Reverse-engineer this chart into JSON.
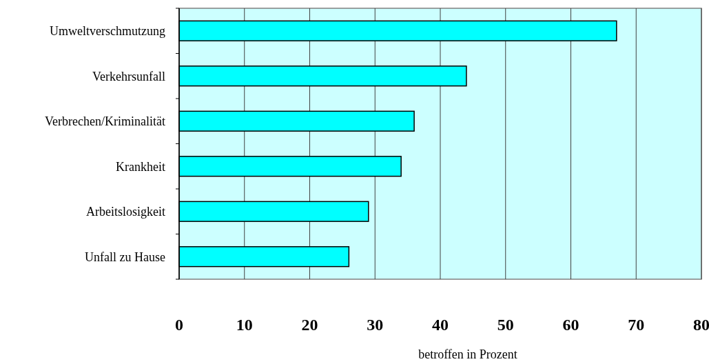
{
  "chart_data": {
    "type": "bar",
    "orientation": "horizontal",
    "xlabel": "betroffen in Prozent",
    "categories": [
      "Umweltverschmutzung",
      "Verkehrsunfall",
      "Verbrechen/Kriminalität",
      "Krankheit",
      "Arbeitslosigkeit",
      "Unfall zu Hause"
    ],
    "values": [
      67,
      44,
      36,
      34,
      29,
      26
    ],
    "color": "#00ffff",
    "xlim": [
      0,
      80
    ],
    "xticks": [
      0,
      10,
      20,
      30,
      40,
      50,
      60,
      70,
      80
    ],
    "grid": "x"
  }
}
